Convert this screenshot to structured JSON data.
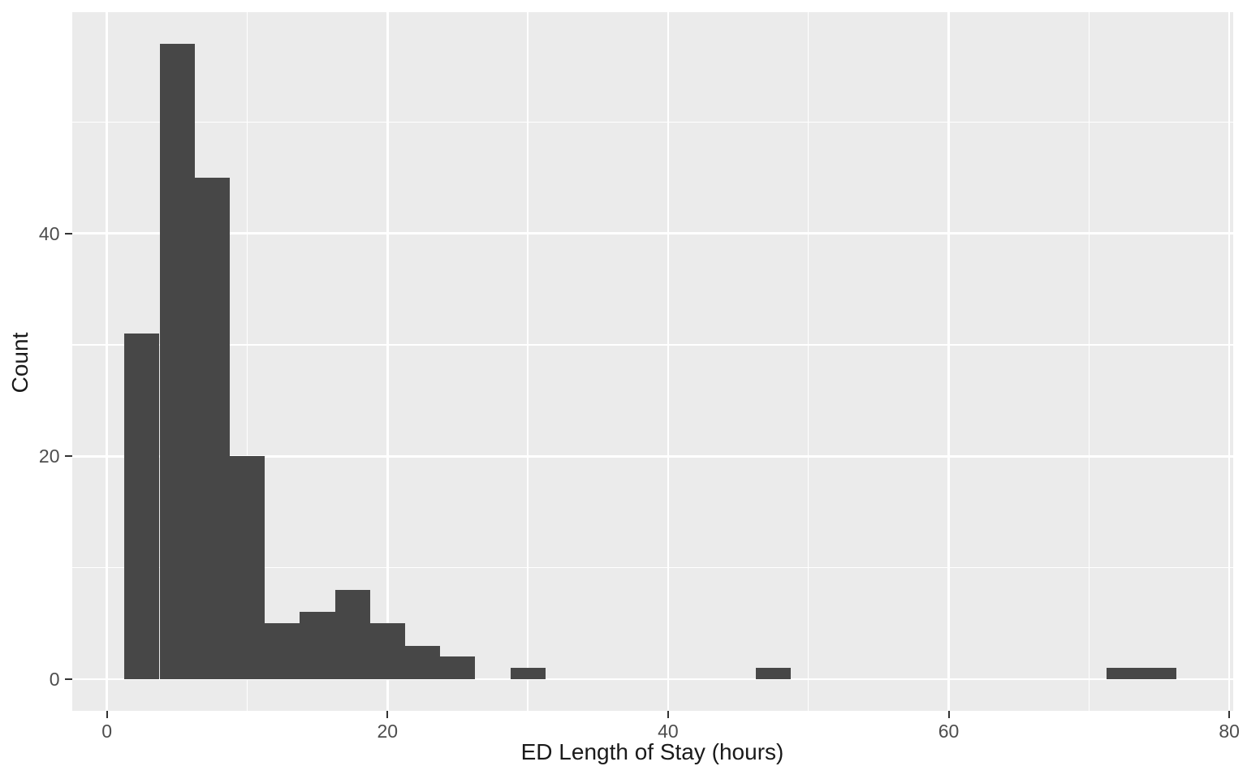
{
  "chart_data": {
    "type": "bar",
    "subtype": "histogram",
    "title": "",
    "xlabel": "ED Length of Stay (hours)",
    "ylabel": "Count",
    "bin_start": 1.25,
    "bin_width": 2.5,
    "counts": [
      31,
      57,
      45,
      20,
      5,
      6,
      8,
      5,
      3,
      2,
      0,
      1,
      0,
      0,
      0,
      0,
      0,
      0,
      1,
      0,
      0,
      0,
      0,
      0,
      0,
      0,
      0,
      0,
      1,
      1
    ],
    "x_ticks": [
      0,
      20,
      40,
      60,
      80
    ],
    "y_ticks": [
      0,
      20,
      40
    ],
    "x_minor_gridlines": [
      10,
      30,
      50,
      70
    ],
    "y_minor_gridlines": [
      10,
      30,
      50
    ],
    "xlim": [
      -2.5,
      80.25
    ],
    "ylim": [
      -2.85,
      59.85
    ],
    "grid": true,
    "legend": false,
    "colors": {
      "bar_fill": "#474747",
      "panel_background": "#EBEBEB",
      "gridline": "#FFFFFF",
      "tick_label": "#4D4D4D",
      "axis_title": "#1A1A1A",
      "tick_mark": "#333333",
      "figure_background": "#FFFFFF"
    }
  }
}
